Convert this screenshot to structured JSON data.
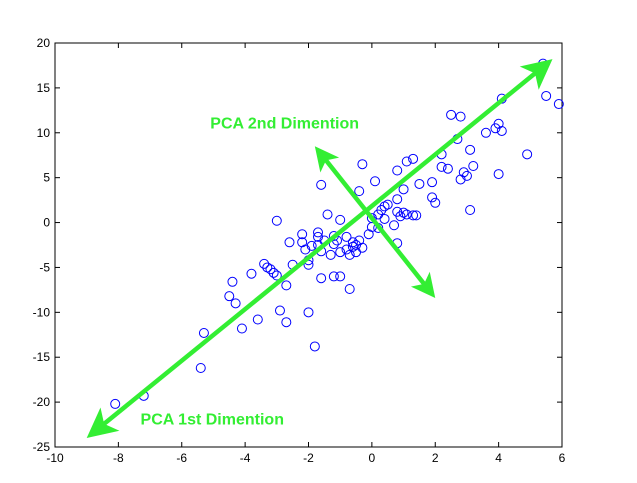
{
  "chart_data": {
    "type": "scatter",
    "title": "",
    "xlabel": "",
    "ylabel": "",
    "xlim": [
      -10,
      6
    ],
    "ylim": [
      -25,
      20
    ],
    "grid": false,
    "xticks": [
      -10,
      -8,
      -6,
      -4,
      -2,
      0,
      2,
      4,
      6
    ],
    "yticks": [
      -25,
      -20,
      -15,
      -10,
      -5,
      0,
      5,
      10,
      15,
      20
    ],
    "series": [
      {
        "name": "samples",
        "marker": "open-circle",
        "color": "#0000ff",
        "points": [
          [
            -8.1,
            -20.2
          ],
          [
            -7.2,
            -19.3
          ],
          [
            -5.4,
            -16.2
          ],
          [
            -5.3,
            -12.3
          ],
          [
            -4.5,
            -8.2
          ],
          [
            -4.4,
            -6.6
          ],
          [
            -4.3,
            -9.0
          ],
          [
            -4.1,
            -11.8
          ],
          [
            -3.8,
            -5.7
          ],
          [
            -3.6,
            -10.8
          ],
          [
            -3.4,
            -4.6
          ],
          [
            -3.3,
            -5.0
          ],
          [
            -3.2,
            -5.2
          ],
          [
            -3.1,
            -5.6
          ],
          [
            -3.0,
            -5.9
          ],
          [
            -3.0,
            0.2
          ],
          [
            -2.9,
            -9.8
          ],
          [
            -2.7,
            -7.0
          ],
          [
            -2.7,
            -11.1
          ],
          [
            -2.6,
            -2.2
          ],
          [
            -2.5,
            -4.7
          ],
          [
            -2.2,
            -1.3
          ],
          [
            -2.2,
            -2.2
          ],
          [
            -2.1,
            -3.0
          ],
          [
            -2.0,
            -4.2
          ],
          [
            -2.0,
            -4.7
          ],
          [
            -2.0,
            -10.0
          ],
          [
            -1.9,
            -2.6
          ],
          [
            -1.8,
            -13.8
          ],
          [
            -1.7,
            -1.1
          ],
          [
            -1.7,
            -1.6
          ],
          [
            -1.7,
            -2.5
          ],
          [
            -1.6,
            4.2
          ],
          [
            -1.6,
            -3.2
          ],
          [
            -1.6,
            -6.2
          ],
          [
            -1.5,
            -2.0
          ],
          [
            -1.4,
            0.9
          ],
          [
            -1.3,
            -3.6
          ],
          [
            -1.2,
            -1.5
          ],
          [
            -1.2,
            -2.4
          ],
          [
            -1.2,
            -6.0
          ],
          [
            -1.1,
            -2.0
          ],
          [
            -1.0,
            -3.3
          ],
          [
            -1.0,
            -6.0
          ],
          [
            -1.0,
            0.3
          ],
          [
            -0.8,
            -1.6
          ],
          [
            -0.8,
            -3.0
          ],
          [
            -0.7,
            -7.4
          ],
          [
            -0.7,
            -3.6
          ],
          [
            -0.6,
            -2.7
          ],
          [
            -0.6,
            -2.2
          ],
          [
            -0.5,
            -2.5
          ],
          [
            -0.5,
            -3.3
          ],
          [
            -0.4,
            -2.0
          ],
          [
            -0.4,
            3.5
          ],
          [
            -0.3,
            -2.8
          ],
          [
            -0.3,
            6.5
          ],
          [
            -0.1,
            -1.3
          ],
          [
            0.0,
            -0.5
          ],
          [
            0.0,
            0.5
          ],
          [
            0.1,
            4.6
          ],
          [
            0.2,
            0.9
          ],
          [
            0.2,
            -0.6
          ],
          [
            0.3,
            1.4
          ],
          [
            0.4,
            1.8
          ],
          [
            0.4,
            0.4
          ],
          [
            0.5,
            2.0
          ],
          [
            0.7,
            -0.3
          ],
          [
            0.8,
            1.2
          ],
          [
            0.8,
            2.6
          ],
          [
            0.8,
            -2.3
          ],
          [
            0.8,
            5.8
          ],
          [
            0.9,
            0.7
          ],
          [
            1.0,
            1.1
          ],
          [
            1.0,
            3.7
          ],
          [
            1.1,
            0.9
          ],
          [
            1.1,
            6.8
          ],
          [
            1.3,
            7.1
          ],
          [
            1.3,
            0.8
          ],
          [
            1.4,
            0.8
          ],
          [
            1.5,
            4.3
          ],
          [
            1.9,
            4.5
          ],
          [
            1.9,
            2.8
          ],
          [
            2.0,
            2.2
          ],
          [
            2.2,
            6.2
          ],
          [
            2.2,
            7.6
          ],
          [
            2.4,
            6.0
          ],
          [
            2.5,
            12.0
          ],
          [
            2.7,
            9.3
          ],
          [
            2.8,
            4.8
          ],
          [
            2.8,
            11.8
          ],
          [
            2.9,
            5.6
          ],
          [
            3.0,
            5.2
          ],
          [
            3.1,
            1.4
          ],
          [
            3.1,
            8.1
          ],
          [
            3.2,
            6.3
          ],
          [
            3.6,
            10.0
          ],
          [
            3.9,
            10.5
          ],
          [
            4.0,
            5.4
          ],
          [
            4.0,
            11.0
          ],
          [
            4.1,
            13.8
          ],
          [
            4.1,
            10.2
          ],
          [
            4.9,
            7.6
          ],
          [
            5.4,
            17.7
          ],
          [
            5.5,
            14.1
          ],
          [
            5.9,
            13.2
          ]
        ]
      }
    ],
    "annotations": [
      {
        "text": "PCA 1st Dimention",
        "color": "#33ee33",
        "start": [
          -9.0,
          -24.0
        ],
        "end": [
          5.7,
          18.2
        ],
        "label_at": [
          -7.3,
          -22.5
        ],
        "font_size": 16,
        "arrowheads": "both"
      },
      {
        "text": "PCA 2nd Dimention",
        "color": "#33ee33",
        "start": [
          -1.8,
          8.5
        ],
        "end": [
          2.0,
          -8.4
        ],
        "label_at": [
          -5.1,
          10.5
        ],
        "font_size": 16,
        "arrowheads": "both"
      }
    ]
  }
}
